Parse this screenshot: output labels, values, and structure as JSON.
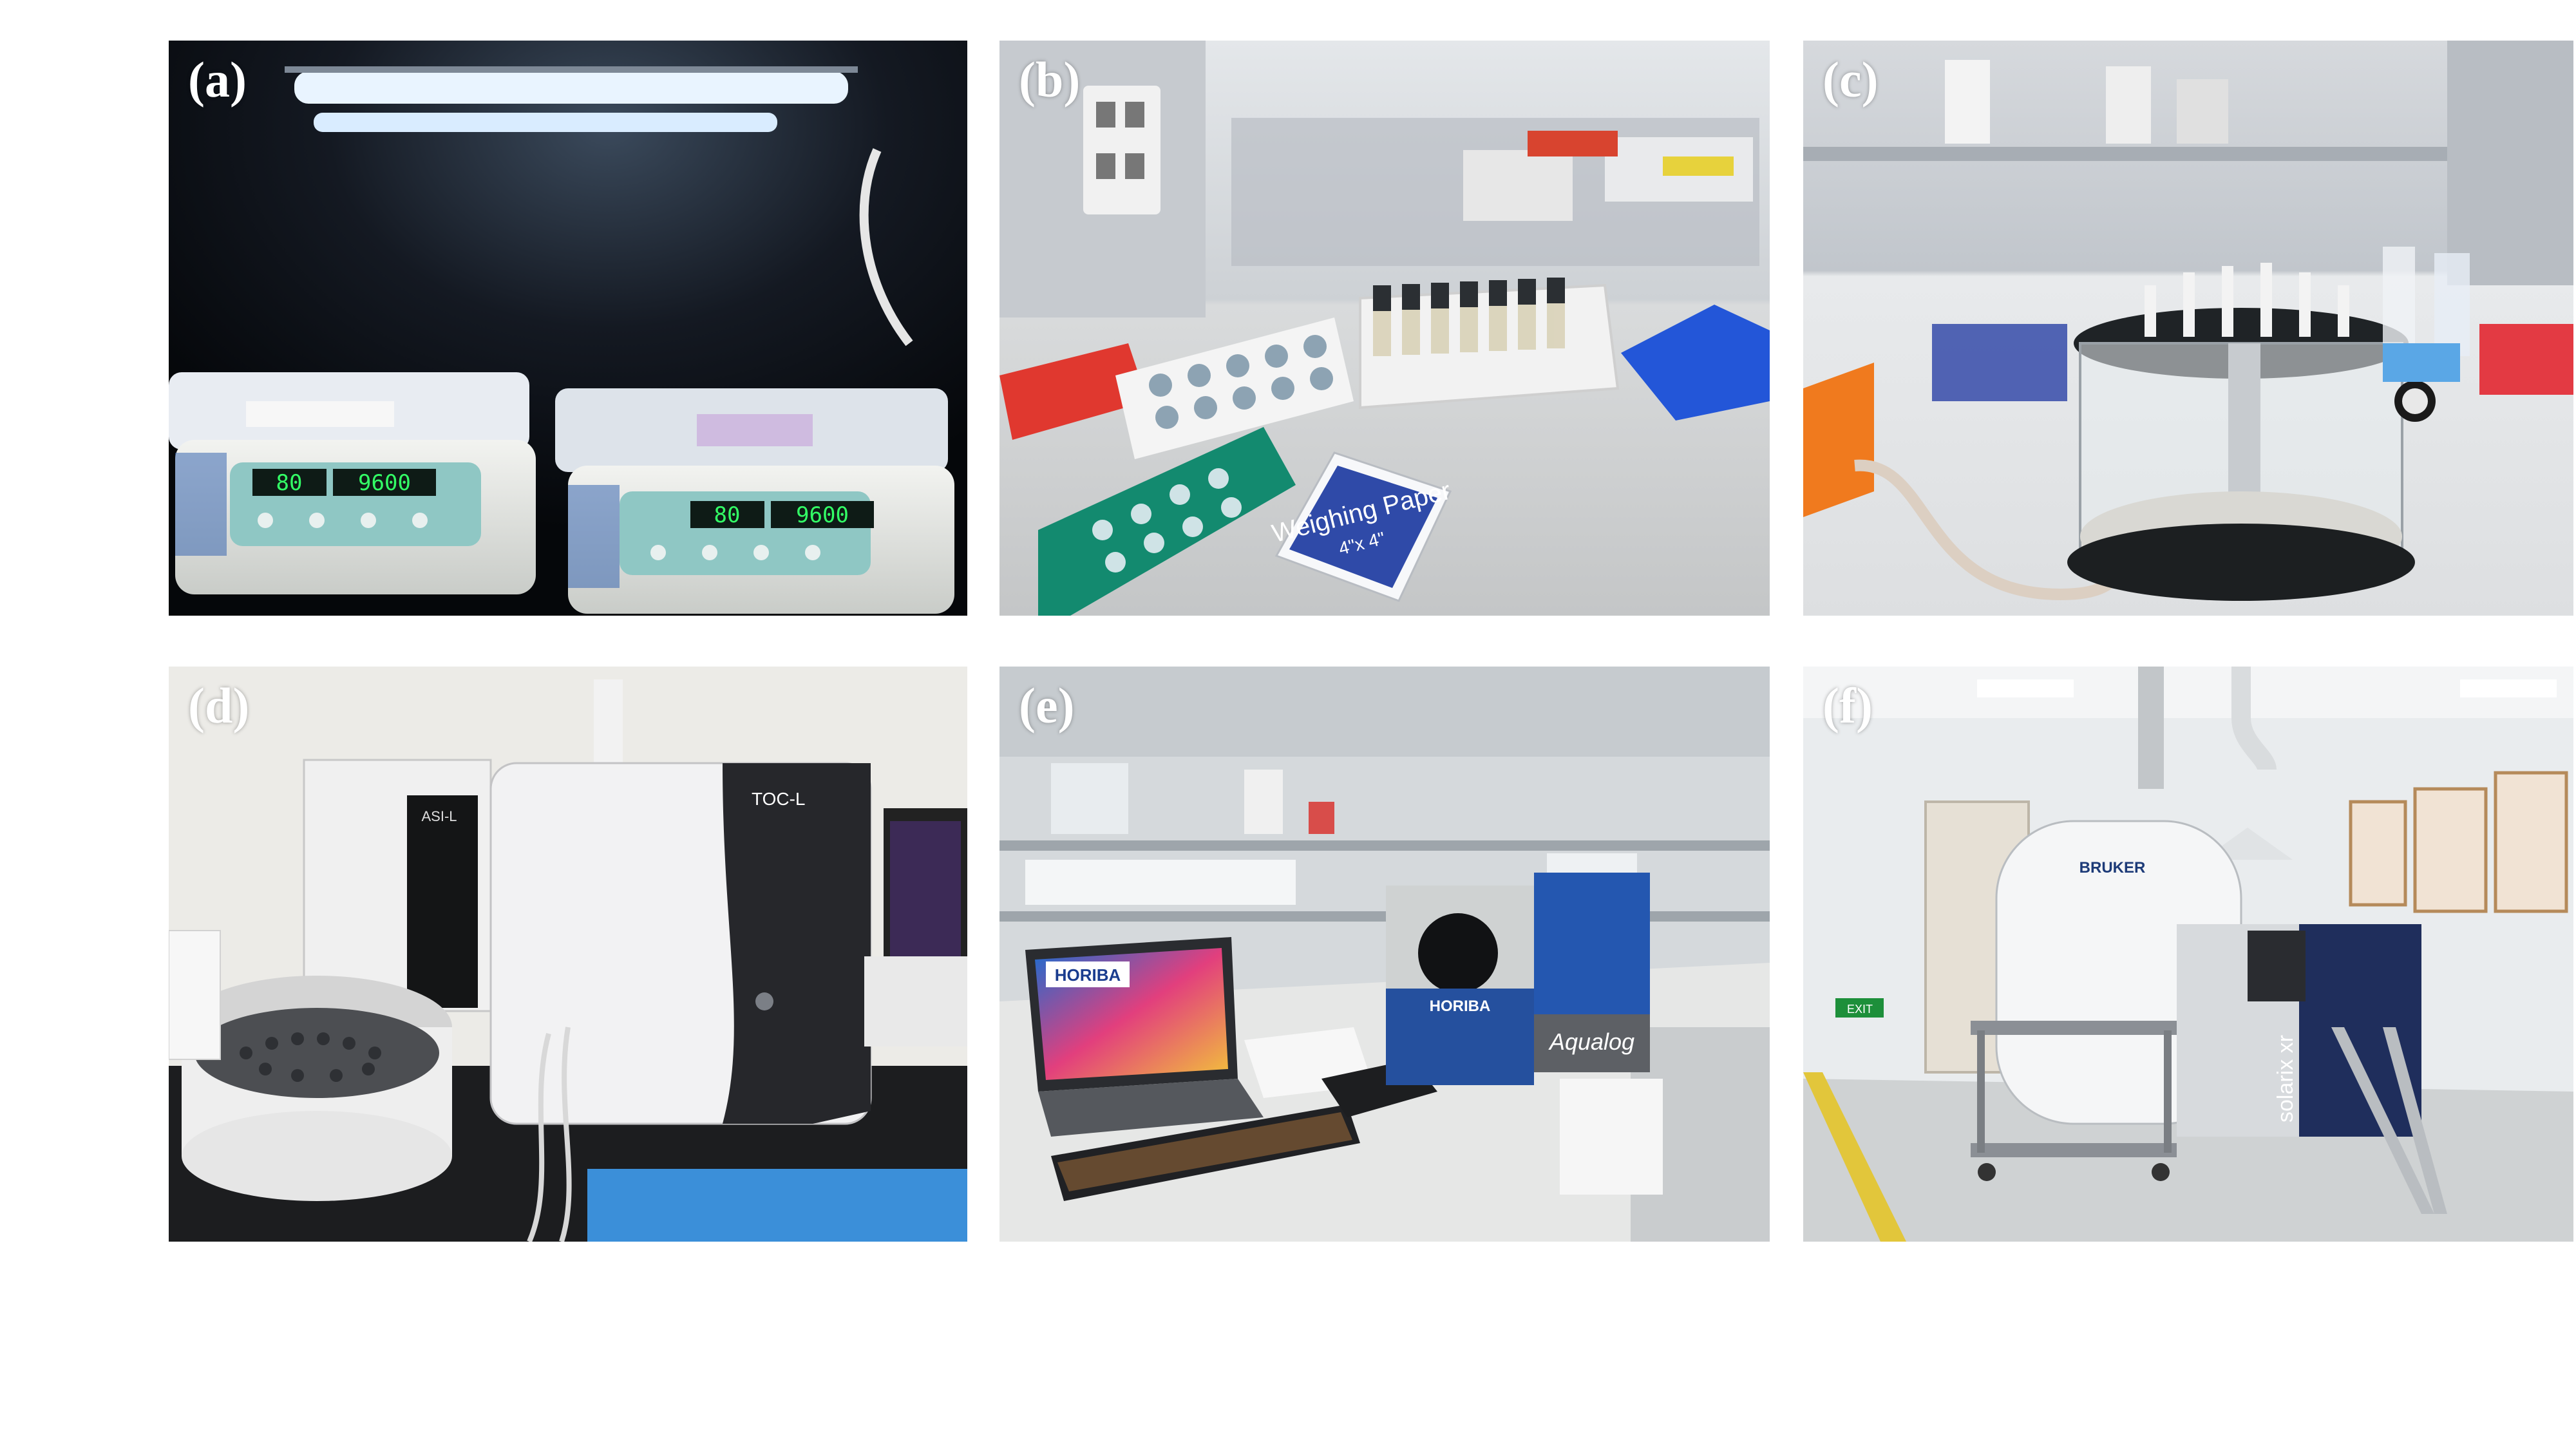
{
  "panels": [
    {
      "label": "(a)",
      "description_icon": "shaker-incubator-photo",
      "displays": [
        "80",
        "9600",
        "80",
        "9600"
      ]
    },
    {
      "label": "(b)",
      "description_icon": "vial-rack-bench-photo",
      "packet_title": "Weighing Paper",
      "packet_size": "4\"x 4\""
    },
    {
      "label": "(c)",
      "description_icon": "vacuum-filtration-chamber-photo"
    },
    {
      "label": "(d)",
      "description_icon": "toc-analyzer-photo",
      "brand_text": "TOC-L",
      "sampler_text": "ASI-L"
    },
    {
      "label": "(e)",
      "description_icon": "fluorescence-spectrometer-photo",
      "screen_brand": "HORIBA",
      "instrument_brand": "HORIBA",
      "instrument_model": "Aqualog"
    },
    {
      "label": "(f)",
      "description_icon": "ft-icr-mass-spectrometer-photo",
      "magnet_brand": "BRUKER",
      "instrument_model": "solarix xr",
      "exit_sign": "EXIT"
    }
  ],
  "colors": {
    "background": "#ffffff",
    "label": "#ffffff"
  }
}
